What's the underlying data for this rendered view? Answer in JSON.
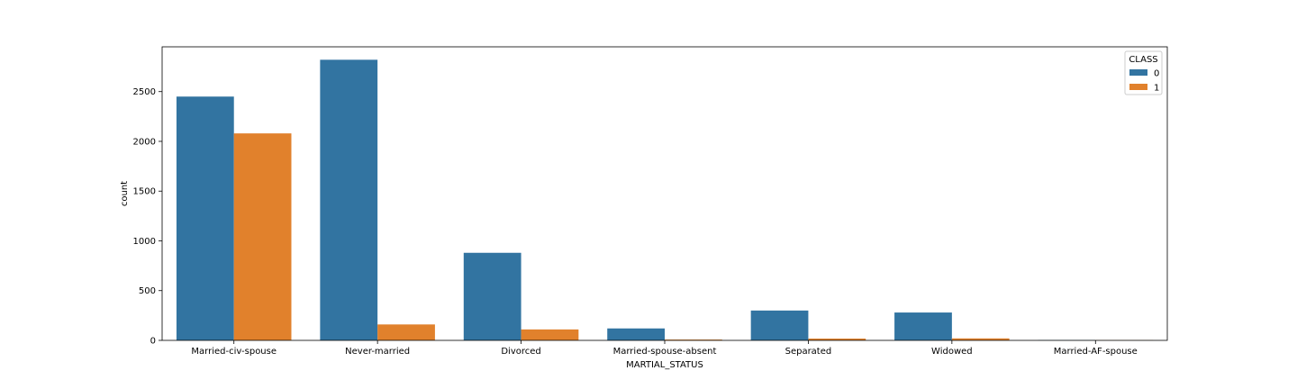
{
  "chart_data": {
    "type": "bar",
    "title": "",
    "xlabel": "MARTIAL_STATUS",
    "ylabel": "count",
    "categories": [
      "Married-civ-spouse",
      "Never-married",
      "Divorced",
      "Married-spouse-absent",
      "Separated",
      "Widowed",
      "Married-AF-spouse"
    ],
    "series": [
      {
        "name": "0",
        "values": [
          2450,
          2820,
          880,
          120,
          300,
          280,
          3
        ]
      },
      {
        "name": "1",
        "values": [
          2080,
          160,
          110,
          8,
          18,
          20,
          2
        ]
      }
    ],
    "ylim": [
      0,
      2950
    ],
    "yticks": [
      0,
      500,
      1000,
      1500,
      2000,
      2500
    ],
    "grid": false,
    "legend": {
      "title": "CLASS",
      "placement": "top-right"
    },
    "colors": [
      "#3274a1",
      "#e1812c"
    ]
  }
}
